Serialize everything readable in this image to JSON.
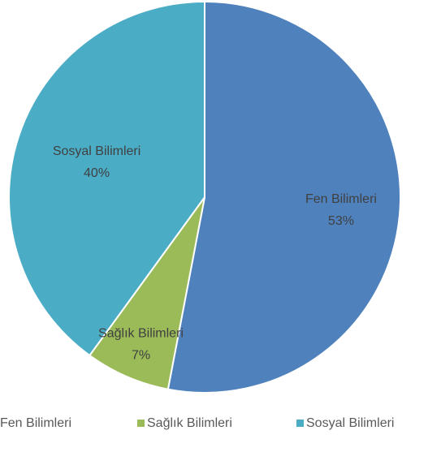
{
  "chart_data": {
    "type": "pie",
    "categories": [
      "Fen Bilimleri",
      "Sağlık Bilimleri",
      "Sosyal Bilimleri"
    ],
    "values": [
      53,
      7,
      40
    ],
    "value_labels": [
      "53%",
      "7%",
      "40%"
    ],
    "colors": [
      "#4f81bd",
      "#9bbb59",
      "#4bacc6"
    ],
    "legend": "bottom"
  }
}
